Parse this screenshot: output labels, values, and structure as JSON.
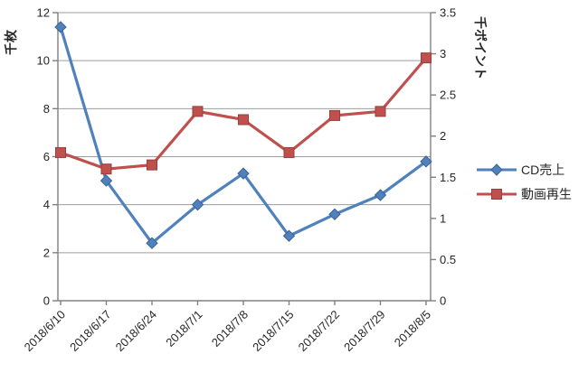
{
  "chart_data": {
    "type": "line",
    "categories": [
      "2018/6/10",
      "2018/6/17",
      "2018/6/24",
      "2018/7/1",
      "2018/7/8",
      "2018/7/15",
      "2018/7/22",
      "2018/7/29",
      "2018/8/5"
    ],
    "series": [
      {
        "name": "CD売上",
        "axis": "left",
        "marker": "diamond",
        "color": "#4F81BD",
        "edge_color": "#3A6191",
        "values": [
          11.4,
          5.0,
          2.4,
          4.0,
          5.3,
          2.7,
          3.6,
          4.4,
          5.8
        ]
      },
      {
        "name": "動画再生",
        "axis": "right",
        "marker": "square",
        "color": "#C0504D",
        "edge_color": "#96403E",
        "values": [
          1.8,
          1.6,
          1.65,
          2.3,
          2.2,
          1.8,
          2.25,
          2.3,
          2.95
        ]
      }
    ],
    "left_axis": {
      "title": "千枚",
      "min": 0,
      "max": 12,
      "step": 2,
      "tick_labels": [
        "0",
        "2",
        "4",
        "6",
        "8",
        "10",
        "12"
      ]
    },
    "right_axis": {
      "title": "千ポイント",
      "min": 0,
      "max": 3.5,
      "step": 0.5,
      "tick_labels": [
        "0",
        "0.5",
        "1",
        "1.5",
        "2",
        "2.5",
        "3",
        "3.5"
      ]
    },
    "grid": true,
    "legend_position": "right",
    "x_tick_rotation": -45,
    "colors": {
      "gridline": "#9d9d9d",
      "axis_line": "#808080",
      "tick_text": "#262626"
    }
  }
}
